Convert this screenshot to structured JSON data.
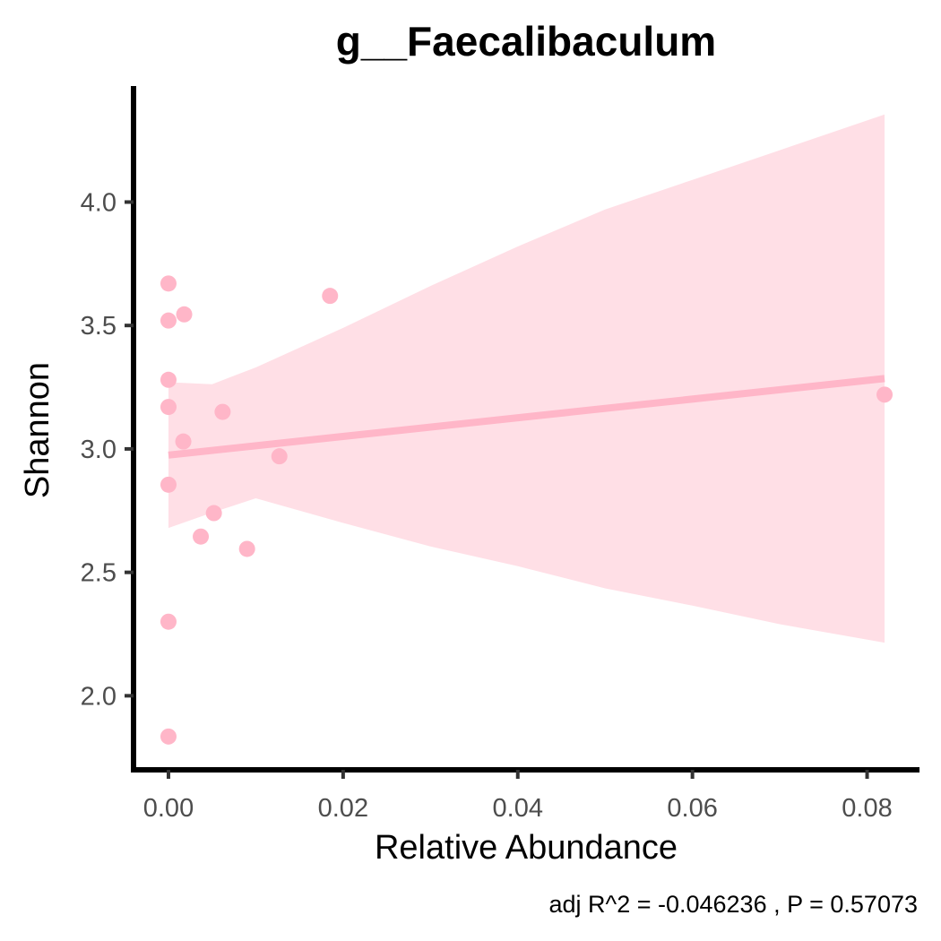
{
  "chart_data": {
    "type": "scatter",
    "title": "g__Faecalibaculum",
    "xlabel": "Relative Abundance",
    "ylabel": "Shannon",
    "caption": "adj R^2 =  -0.046236 , P = 0.57073",
    "xlim": [
      -0.004,
      0.086
    ],
    "ylim": [
      1.7,
      4.47
    ],
    "xticks": [
      0.0,
      0.02,
      0.04,
      0.06,
      0.08
    ],
    "xtick_labels": [
      "0.00",
      "0.02",
      "0.04",
      "0.06",
      "0.08"
    ],
    "yticks": [
      2.0,
      2.5,
      3.0,
      3.5,
      4.0
    ],
    "ytick_labels": [
      "2.0",
      "2.5",
      "3.0",
      "3.5",
      "4.0"
    ],
    "grid": false,
    "points": [
      {
        "x": 0.0,
        "y": 3.67
      },
      {
        "x": 0.0,
        "y": 3.52
      },
      {
        "x": 0.0018,
        "y": 3.545
      },
      {
        "x": 0.0185,
        "y": 3.62
      },
      {
        "x": 0.0,
        "y": 3.28
      },
      {
        "x": 0.0,
        "y": 3.17
      },
      {
        "x": 0.0062,
        "y": 3.15
      },
      {
        "x": 0.0017,
        "y": 3.03
      },
      {
        "x": 0.0127,
        "y": 2.97
      },
      {
        "x": 0.0,
        "y": 2.855
      },
      {
        "x": 0.0052,
        "y": 2.74
      },
      {
        "x": 0.0037,
        "y": 2.645
      },
      {
        "x": 0.009,
        "y": 2.595
      },
      {
        "x": 0.0,
        "y": 2.3
      },
      {
        "x": 0.0,
        "y": 1.835
      },
      {
        "x": 0.082,
        "y": 3.22
      }
    ],
    "fit_line": {
      "x": [
        0.0,
        0.082
      ],
      "y": [
        2.975,
        3.285
      ]
    },
    "confidence_band": {
      "x": [
        0.0,
        0.005,
        0.01,
        0.02,
        0.03,
        0.04,
        0.05,
        0.06,
        0.07,
        0.082
      ],
      "upper": [
        3.27,
        3.262,
        3.33,
        3.49,
        3.66,
        3.82,
        3.97,
        4.09,
        4.21,
        4.355
      ],
      "lower": [
        2.68,
        2.742,
        2.8,
        2.7,
        2.605,
        2.525,
        2.435,
        2.365,
        2.29,
        2.215
      ]
    },
    "colors": {
      "points": "#ffb6c8",
      "line": "#ffb6c8",
      "band": "#ffdfe6",
      "axis": "#000000"
    }
  }
}
